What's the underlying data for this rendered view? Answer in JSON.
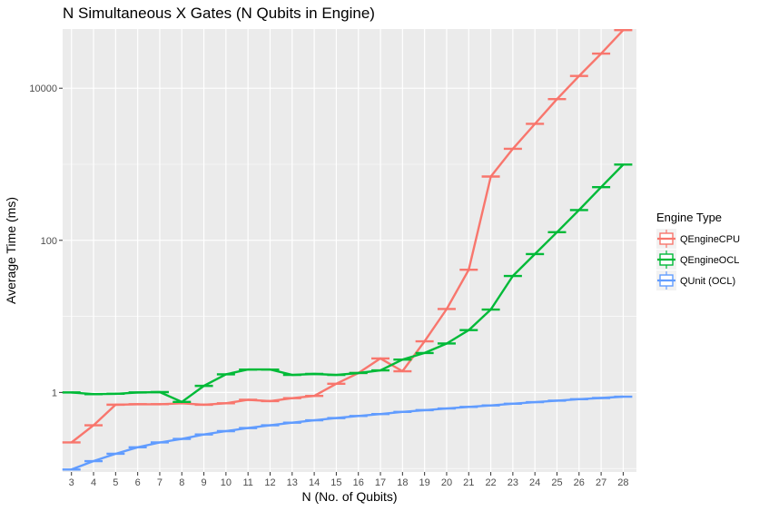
{
  "chart_data": {
    "type": "line",
    "title": "N Simultaneous X Gates (N Qubits in Engine)",
    "xlabel": "N (No. of Qubits)",
    "ylabel": "Average Time (ms)",
    "x": [
      3,
      4,
      5,
      6,
      7,
      8,
      9,
      10,
      11,
      12,
      13,
      14,
      15,
      16,
      17,
      18,
      19,
      20,
      21,
      22,
      23,
      24,
      25,
      26,
      27,
      28
    ],
    "y_scale": "log10",
    "ylim": [
      0.09,
      60000
    ],
    "y_ticks": [
      1,
      100,
      10000
    ],
    "y_tick_labels": [
      "1",
      "100",
      "10000"
    ],
    "xlim": [
      2.6,
      28.6
    ],
    "x_tick_labels": [
      "3",
      "4",
      "5",
      "6",
      "7",
      "8",
      "9",
      "10",
      "11",
      "12",
      "13",
      "14",
      "15",
      "16",
      "17",
      "18",
      "19",
      "20",
      "21",
      "22",
      "23",
      "24",
      "25",
      "26",
      "27",
      "28"
    ],
    "grid": true,
    "legend": {
      "title": "Engine Type",
      "position": "right"
    },
    "series": [
      {
        "name": "QEngineCPU",
        "color": "#F8766D",
        "values": [
          0.22,
          0.37,
          0.69,
          0.7,
          0.7,
          0.72,
          0.69,
          0.72,
          0.8,
          0.77,
          0.84,
          0.9,
          1.3,
          1.8,
          2.8,
          1.9,
          4.7,
          12.5,
          41,
          690,
          1600,
          3400,
          7200,
          14500,
          28500,
          58000
        ]
      },
      {
        "name": "QEngineOCL",
        "color": "#00BA38",
        "values": [
          1.0,
          0.95,
          0.96,
          1.0,
          1.01,
          0.75,
          1.22,
          1.73,
          2.0,
          2.0,
          1.7,
          1.75,
          1.7,
          1.8,
          1.95,
          2.7,
          3.3,
          4.4,
          6.6,
          12.3,
          34,
          66,
          128,
          250,
          500,
          990
        ]
      },
      {
        "name": "QUnit (OCL)",
        "color": "#619CFF",
        "values": [
          0.097,
          0.125,
          0.156,
          0.19,
          0.22,
          0.245,
          0.28,
          0.31,
          0.34,
          0.37,
          0.4,
          0.43,
          0.46,
          0.49,
          0.52,
          0.555,
          0.585,
          0.615,
          0.645,
          0.675,
          0.71,
          0.745,
          0.78,
          0.815,
          0.845,
          0.88
        ]
      }
    ]
  }
}
